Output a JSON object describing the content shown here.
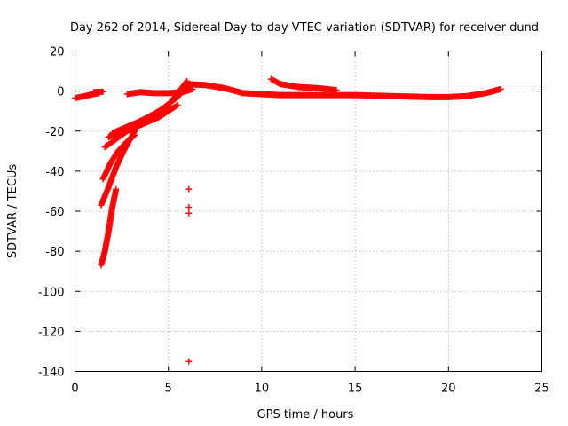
{
  "chart_data": {
    "type": "scatter",
    "title": "Day 262 of 2014, Sidereal Day-to-day VTEC variation (SDTVAR) for receiver dund",
    "xlabel": "GPS time / hours",
    "ylabel": "SDTVAR / TECUs",
    "xlim": [
      0,
      25
    ],
    "ylim": [
      -140,
      20
    ],
    "xticks": [
      0,
      5,
      10,
      15,
      20,
      25
    ],
    "yticks": [
      20,
      0,
      -20,
      -40,
      -60,
      -80,
      -100,
      -120,
      -140
    ],
    "grid": true,
    "legend": "none",
    "marker": "+",
    "series": [
      {
        "name": "SDTVAR",
        "color": "#ff0000",
        "tracks": [
          {
            "x": [
              0.0,
              0.5,
              1.0,
              1.3
            ],
            "y": [
              -3.5,
              -2.5,
              -1.5,
              -1.0
            ]
          },
          {
            "x": [
              1.0,
              1.5
            ],
            "y": [
              -0.5,
              -0.3
            ]
          },
          {
            "x": [
              2.8,
              3.5,
              4.2,
              5.0,
              5.8,
              6.3
            ],
            "y": [
              -1.5,
              -0.5,
              -1.0,
              -1.0,
              -0.5,
              1.0
            ]
          },
          {
            "x": [
              6.0,
              7.0,
              8.0,
              9.0,
              10.0,
              11.0,
              13.0,
              15.0,
              17.0,
              19.0,
              20.0,
              21.0,
              22.0,
              22.8
            ],
            "y": [
              3.5,
              3.0,
              1.5,
              -1.0,
              -1.5,
              -2.0,
              -2.0,
              -2.0,
              -2.5,
              -3.0,
              -3.0,
              -2.5,
              -1.0,
              1.0
            ]
          },
          {
            "x": [
              10.5,
              11.0,
              12.0,
              13.0,
              14.0
            ],
            "y": [
              6.0,
              3.5,
              2.0,
              1.5,
              0.5
            ]
          },
          {
            "x": [
              1.4,
              1.6,
              1.8,
              2.0,
              2.2
            ],
            "y": [
              -87,
              -80,
              -70,
              -58,
              -49
            ]
          },
          {
            "x": [
              1.4,
              1.8,
              2.2,
              2.6,
              3.2
            ],
            "y": [
              -57,
              -48,
              -38,
              -30,
              -20
            ]
          },
          {
            "x": [
              1.5,
              1.9,
              2.3,
              2.8,
              3.2
            ],
            "y": [
              -44,
              -36,
              -30,
              -25,
              -22
            ]
          },
          {
            "x": [
              1.6,
              2.2,
              2.8,
              3.5,
              4.5,
              5.5
            ],
            "y": [
              -28,
              -24,
              -20,
              -17,
              -13,
              -7
            ]
          },
          {
            "x": [
              1.8,
              2.5,
              3.5,
              4.5,
              5.5,
              6.0
            ],
            "y": [
              -23,
              -20,
              -15,
              -10,
              -3,
              3
            ]
          },
          {
            "x": [
              2.0,
              3.0,
              4.0,
              5.0,
              6.0
            ],
            "y": [
              -21,
              -17,
              -13,
              -7,
              5
            ]
          }
        ],
        "isolated_points": {
          "x": [
            6.1,
            6.1,
            6.1,
            6.1
          ],
          "y": [
            -49,
            -58,
            -61,
            -135
          ]
        }
      }
    ]
  }
}
